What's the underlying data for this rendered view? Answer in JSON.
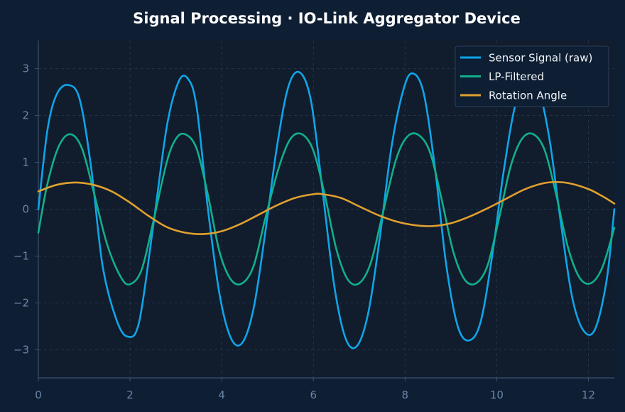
{
  "chart_data": {
    "type": "line",
    "title": "Signal Processing · IO-Link Aggregator Device",
    "xlabel": "",
    "ylabel": "",
    "xlim": [
      0,
      12.566
    ],
    "ylim": [
      -3.6,
      3.6
    ],
    "x_ticks": [
      0,
      2,
      4,
      6,
      8,
      10,
      12
    ],
    "x_tick_labels": [
      "0",
      "2",
      "4",
      "6",
      "8",
      "10",
      "12"
    ],
    "y_ticks": [
      -3,
      -2,
      -1,
      0,
      1,
      2,
      3
    ],
    "y_tick_labels": [
      "−3",
      "−2",
      "−1",
      "0",
      "1",
      "2",
      "3"
    ],
    "grid": true,
    "legend_position": "top-right",
    "series": [
      {
        "name": "Sensor Signal (raw)",
        "color": "#0ea5e9",
        "x": [
          0,
          0.2,
          0.4,
          0.65,
          0.9,
          1.15,
          1.4,
          1.7,
          1.95,
          2.2,
          2.5,
          2.8,
          3.05,
          3.25,
          3.45,
          3.7,
          3.95,
          4.2,
          4.45,
          4.7,
          4.95,
          5.2,
          5.45,
          5.7,
          5.95,
          6.2,
          6.45,
          6.7,
          6.95,
          7.2,
          7.45,
          7.7,
          7.95,
          8.15,
          8.4,
          8.65,
          8.9,
          9.15,
          9.4,
          9.65,
          9.9,
          10.15,
          10.4,
          10.65,
          10.9,
          11.15,
          11.4,
          11.65,
          11.9,
          12.15,
          12.4,
          12.566
        ],
        "values": [
          0.0,
          1.7,
          2.45,
          2.65,
          2.35,
          0.9,
          -1.2,
          -2.35,
          -2.72,
          -2.4,
          -0.4,
          1.75,
          2.7,
          2.8,
          2.2,
          0.0,
          -1.8,
          -2.75,
          -2.85,
          -2.1,
          -0.5,
          1.3,
          2.6,
          2.92,
          2.3,
          0.4,
          -1.6,
          -2.75,
          -2.92,
          -2.2,
          -0.6,
          1.3,
          2.5,
          2.9,
          2.5,
          0.9,
          -1.2,
          -2.5,
          -2.8,
          -2.4,
          -1.0,
          0.8,
          2.2,
          2.8,
          2.6,
          1.5,
          -0.3,
          -1.9,
          -2.6,
          -2.55,
          -1.5,
          0.0
        ]
      },
      {
        "name": "LP-Filtered",
        "color": "#10b08c",
        "x": [
          0,
          0.2,
          0.45,
          0.7,
          0.95,
          1.2,
          1.5,
          1.8,
          2.0,
          2.25,
          2.5,
          2.8,
          3.0,
          3.2,
          3.45,
          3.7,
          3.95,
          4.2,
          4.45,
          4.7,
          4.95,
          5.25,
          5.5,
          5.75,
          6.0,
          6.25,
          6.5,
          6.75,
          7.0,
          7.25,
          7.5,
          7.8,
          8.05,
          8.3,
          8.55,
          8.8,
          9.05,
          9.3,
          9.55,
          9.8,
          10.05,
          10.3,
          10.55,
          10.8,
          11.05,
          11.3,
          11.55,
          11.8,
          12.05,
          12.3,
          12.566
        ],
        "values": [
          -0.5,
          0.55,
          1.35,
          1.6,
          1.3,
          0.4,
          -0.75,
          -1.45,
          -1.6,
          -1.3,
          -0.3,
          1.0,
          1.5,
          1.6,
          1.3,
          0.3,
          -0.9,
          -1.5,
          -1.58,
          -1.2,
          -0.2,
          0.9,
          1.5,
          1.6,
          1.25,
          0.3,
          -0.85,
          -1.5,
          -1.58,
          -1.15,
          -0.15,
          1.05,
          1.55,
          1.58,
          1.2,
          0.2,
          -0.9,
          -1.5,
          -1.58,
          -1.2,
          -0.2,
          0.9,
          1.5,
          1.6,
          1.25,
          0.3,
          -0.8,
          -1.45,
          -1.58,
          -1.25,
          -0.4
        ]
      },
      {
        "name": "Rotation Angle",
        "color": "#e0a030",
        "x": [
          0,
          0.4,
          0.8,
          1.2,
          1.6,
          2.0,
          2.4,
          2.8,
          3.2,
          3.6,
          4.0,
          4.4,
          4.8,
          5.2,
          5.6,
          6.0,
          6.2,
          6.6,
          7.0,
          7.4,
          7.8,
          8.2,
          8.6,
          9.0,
          9.4,
          9.8,
          10.2,
          10.6,
          11.0,
          11.3,
          11.6,
          12.0,
          12.3,
          12.566
        ],
        "values": [
          0.38,
          0.52,
          0.57,
          0.52,
          0.38,
          0.14,
          -0.14,
          -0.38,
          -0.5,
          -0.53,
          -0.47,
          -0.32,
          -0.12,
          0.08,
          0.24,
          0.32,
          0.32,
          0.24,
          0.06,
          -0.12,
          -0.26,
          -0.34,
          -0.36,
          -0.3,
          -0.16,
          0.02,
          0.22,
          0.42,
          0.55,
          0.58,
          0.55,
          0.43,
          0.28,
          0.12
        ]
      }
    ]
  }
}
